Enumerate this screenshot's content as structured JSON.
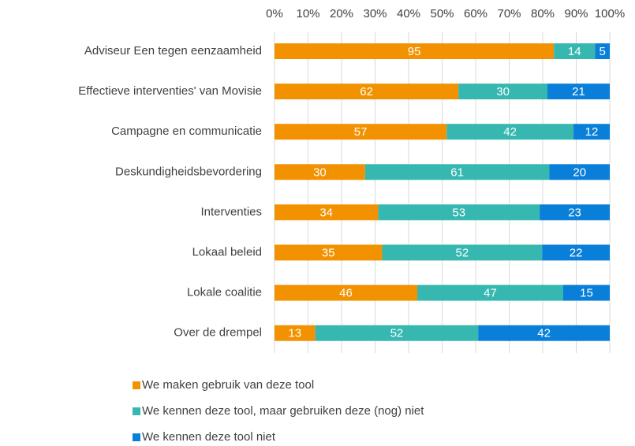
{
  "chart_data": {
    "type": "bar",
    "orientation": "horizontal",
    "stacked": "percent",
    "categories": [
      "Adviseur Een tegen eenzaamheid",
      "Effectieve interventies' van Movisie",
      "Campagne en communicatie",
      "Deskundigheidsbevordering ",
      "Interventies",
      "Lokaal beleid ",
      "Lokale coalitie",
      "Over de drempel"
    ],
    "series": [
      {
        "name": "We maken gebruik van deze tool",
        "color": "#f39200",
        "values": [
          95,
          62,
          57,
          30,
          34,
          35,
          46,
          13
        ]
      },
      {
        "name": "We kennen deze tool, maar gebruiken deze (nog) niet",
        "color": "#36b7b0",
        "values": [
          14,
          30,
          42,
          61,
          53,
          52,
          47,
          52
        ]
      },
      {
        "name": "We kennen deze tool niet",
        "color": "#0a7fd9",
        "values": [
          5,
          21,
          12,
          20,
          23,
          22,
          15,
          42
        ]
      }
    ],
    "xlim": [
      0,
      100
    ],
    "xticks": [
      {
        "value": 0,
        "label": "0%"
      },
      {
        "value": 10,
        "label": "10%"
      },
      {
        "value": 20,
        "label": "20%"
      },
      {
        "value": 30,
        "label": "30%"
      },
      {
        "value": 40,
        "label": "40%"
      },
      {
        "value": 50,
        "label": "50%"
      },
      {
        "value": 60,
        "label": "60%"
      },
      {
        "value": 70,
        "label": "70%"
      },
      {
        "value": 80,
        "label": "80%"
      },
      {
        "value": 90,
        "label": "90%"
      },
      {
        "value": 100,
        "label": "100%"
      }
    ],
    "grid": true,
    "legend": "bottom"
  }
}
